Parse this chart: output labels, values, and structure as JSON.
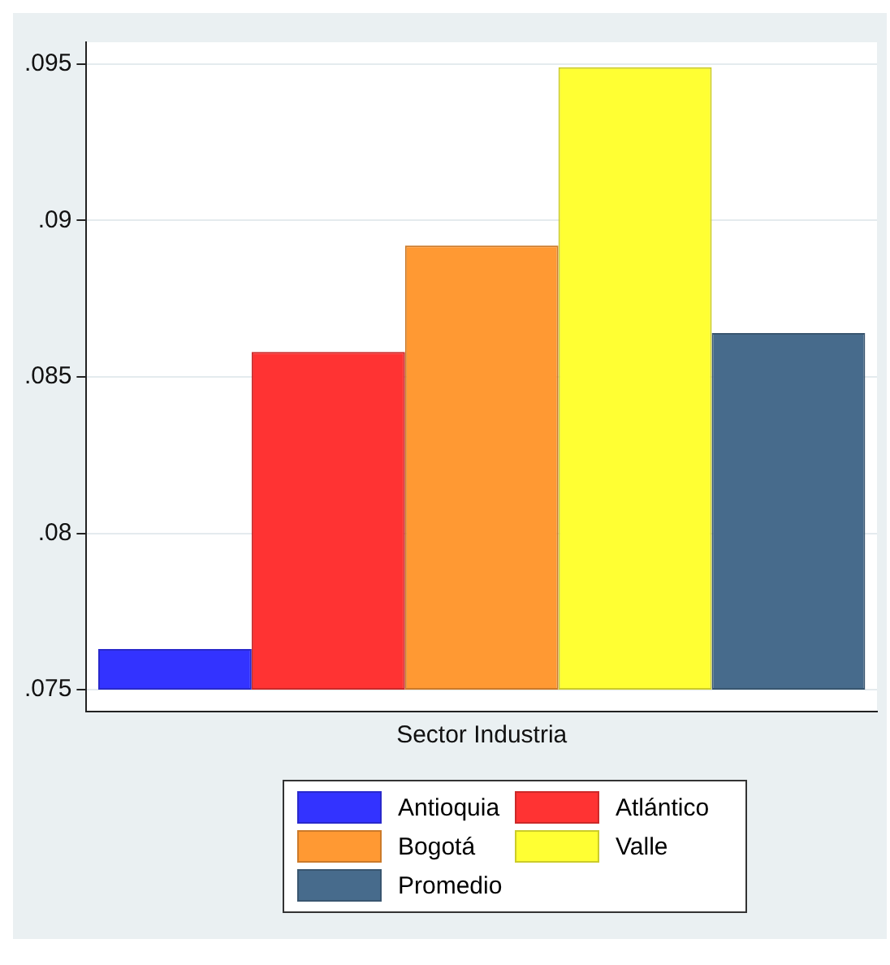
{
  "chart_data": {
    "type": "bar",
    "categories": [
      "Sector Industria"
    ],
    "series": [
      {
        "name": "Antioquia",
        "color": "#3333ff",
        "values": [
          0.0013
        ],
        "base": [
          0.075
        ]
      },
      {
        "name": "Atlántico",
        "color": "#ff3333",
        "values": [
          0.0108
        ],
        "base": [
          0.075
        ]
      },
      {
        "name": "Bogotá",
        "color": "#ff9933",
        "values": [
          0.0142
        ],
        "base": [
          0.075
        ]
      },
      {
        "name": "Valle",
        "color": "#ffff33",
        "values": [
          0.0199
        ],
        "base": [
          0.075
        ]
      },
      {
        "name": "Promedio",
        "color": "#476b8c",
        "values": [
          0.0114
        ],
        "base": [
          0.075
        ]
      }
    ],
    "ylim": [
      0.0743,
      0.0957
    ],
    "yticks": [
      {
        "value": 0.075,
        "label": ".075"
      },
      {
        "value": 0.08,
        "label": ".08"
      },
      {
        "value": 0.085,
        "label": ".085"
      },
      {
        "value": 0.09,
        "label": ".09"
      },
      {
        "value": 0.095,
        "label": ".095"
      }
    ],
    "grid": "y",
    "legend": "bottom"
  }
}
